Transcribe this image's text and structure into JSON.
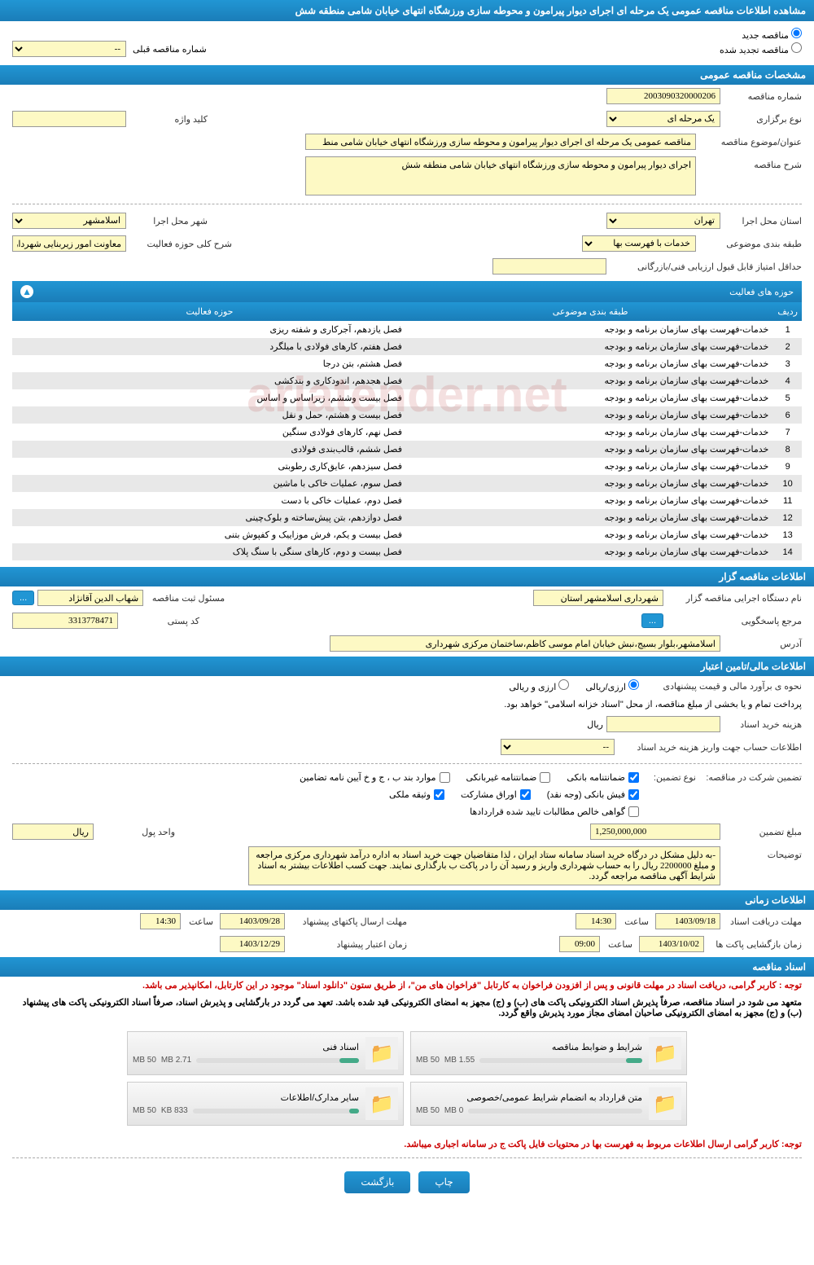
{
  "header": {
    "title": "مشاهده اطلاعات مناقصه عمومی یک مرحله ای اجرای دیوار پیرامون و محوطه سازی ورزشگاه انتهای خیابان شامی منطقه شش"
  },
  "radio": {
    "new_tender": "مناقصه جدید",
    "renewed_tender": "مناقصه تجدید شده",
    "prev_num_label": "شماره مناقصه قبلی",
    "prev_num_value": "--"
  },
  "section1": {
    "title": "مشخصات مناقصه عمومی",
    "tender_num_label": "شماره مناقصه",
    "tender_num": "2003090320000206",
    "type_label": "نوع برگزاری",
    "type_value": "یک مرحله ای",
    "keyword_label": "کلید واژه",
    "keyword": "",
    "subject_label": "عنوان/موضوع مناقصه",
    "subject": "مناقصه عمومی یک مرحله ای اجرای دیوار پیرامون و محوطه سازی ورزشگاه انتهای خیابان شامی منط",
    "desc_label": "شرح مناقصه",
    "desc": "اجرای دیوار پیرامون و محوطه سازی ورزشگاه انتهای خیابان شامی منطقه شش",
    "province_label": "استان محل اجرا",
    "province": "تهران",
    "city_label": "شهر محل اجرا",
    "city": "اسلامشهر",
    "category_label": "طبقه بندی موضوعی",
    "category": "خدمات با فهرست بها",
    "activity_label": "شرح کلی حوزه فعالیت",
    "activity": "معاونت امور زیربنایی شهرداری اسلامشهر",
    "min_score_label": "حداقل امتیاز قابل قبول ارزیابی فنی/بازرگانی",
    "min_score": ""
  },
  "activity_areas": {
    "header": "حوزه های فعالیت",
    "col_row": "ردیف",
    "col_category": "طبقه بندی موضوعی",
    "col_area": "حوزه فعالیت",
    "rows": [
      {
        "n": "1",
        "cat": "خدمات-فهرست بهای سازمان برنامه و بودجه",
        "area": "فصل یازدهم، آجرکاری و شفته ریزی"
      },
      {
        "n": "2",
        "cat": "خدمات-فهرست بهای سازمان برنامه و بودجه",
        "area": "فصل هفتم، کارهای فولادی با میلگرد"
      },
      {
        "n": "3",
        "cat": "خدمات-فهرست بهای سازمان برنامه و بودجه",
        "area": "فصل هشتم، بتن درجا"
      },
      {
        "n": "4",
        "cat": "خدمات-فهرست بهای سازمان برنامه و بودجه",
        "area": "فصل هجدهم، اندودکاری و بندکشی"
      },
      {
        "n": "5",
        "cat": "خدمات-فهرست بهای سازمان برنامه و بودجه",
        "area": "فصل بیست وششم، زیراساس و اساس"
      },
      {
        "n": "6",
        "cat": "خدمات-فهرست بهای سازمان برنامه و بودجه",
        "area": "فصل بیست و هشتم، حمل و نقل"
      },
      {
        "n": "7",
        "cat": "خدمات-فهرست بهای سازمان برنامه و بودجه",
        "area": "فصل نهم، کارهای فولادی سنگین"
      },
      {
        "n": "8",
        "cat": "خدمات-فهرست بهای سازمان برنامه و بودجه",
        "area": "فصل ششم، قالب‌بندی فولادی"
      },
      {
        "n": "9",
        "cat": "خدمات-فهرست بهای سازمان برنامه و بودجه",
        "area": "فصل سیزدهم، عایق‌کاری رطوبتی"
      },
      {
        "n": "10",
        "cat": "خدمات-فهرست بهای سازمان برنامه و بودجه",
        "area": "فصل سوم، عملیات خاکی با ماشین"
      },
      {
        "n": "11",
        "cat": "خدمات-فهرست بهای سازمان برنامه و بودجه",
        "area": "فصل دوم، عملیات خاکی با دست"
      },
      {
        "n": "12",
        "cat": "خدمات-فهرست بهای سازمان برنامه و بودجه",
        "area": "فصل دوازدهم، بتن پیش‌ساخته و بلوک‌چینی"
      },
      {
        "n": "13",
        "cat": "خدمات-فهرست بهای سازمان برنامه و بودجه",
        "area": "فصل بیست و یکم، فرش موزاییک و کفپوش بتنی"
      },
      {
        "n": "14",
        "cat": "خدمات-فهرست بهای سازمان برنامه و بودجه",
        "area": "فصل بیست و دوم، کارهای سنگی با سنگ پلاک"
      }
    ]
  },
  "organizer": {
    "title": "اطلاعات مناقصه گزار",
    "org_label": "نام دستگاه اجرایی مناقصه گزار",
    "org": "شهرداری اسلامشهر استان",
    "responsible_label": "مسئول ثبت مناقصه",
    "responsible": "شهاب الدین آقانژاد",
    "ref_label": "مرجع پاسخگویی",
    "postal_label": "کد پستی",
    "postal": "3313778471",
    "address_label": "آدرس",
    "address": "اسلامشهر،بلوار بسیج،نبش خیابان امام موسی کاظم،ساختمان مرکزی شهرداری"
  },
  "financial": {
    "title": "اطلاعات مالی/تامین اعتبار",
    "estimate_label": "نحوه ی برآورد مالی و قیمت پیشنهادی",
    "arzi_riali": "ارزی/ریالی",
    "arzi_va_riali": "ارزی و ریالی",
    "payment_note": "پرداخت تمام و یا بخشی از مبلغ مناقصه، از محل \"اسناد خزانه اسلامی\" خواهد بود.",
    "doc_cost_label": "هزینه خرید اسناد",
    "rial": "ریال",
    "account_label": "اطلاعات حساب جهت واریز هزینه خرید اسناد",
    "account_value": "--",
    "guarantee_label": "تضمین شرکت در مناقصه:",
    "guarantee_type_label": "نوع تضمین:",
    "bank_guarantee": "ضمانتنامه بانکی",
    "nonbank_guarantee": "ضمانتنامه غیربانکی",
    "clause_items": "موارد بند ب ، ج و خ آیین نامه تضامین",
    "bank_receipt": "فیش بانکی (وجه نقد)",
    "participation_bonds": "اوراق مشارکت",
    "property_pledge": "وثیقه ملکی",
    "net_claims": "گواهی خالص مطالبات تایید شده قراردادها",
    "guarantee_amount_label": "مبلغ تضمین",
    "guarantee_amount": "1,250,000,000",
    "currency_label": "واحد پول",
    "currency": "ریال",
    "notes_label": "توضیحات",
    "notes": "-به دلیل مشکل در درگاه خرید اسناد سامانه ستاد ایران ، لذا متقاضیان جهت خرید اسناد به اداره درآمد شهرداری مرکزی مراجعه و مبلغ 2200000 ریال را به حساب شهرداری واریز و رسید آن را در پاکت ب بارگذاری نمایند. جهت کسب اطلاعات بیشتر به اسناد شرایط آگهی مناقصه مراجعه گردد."
  },
  "timing": {
    "title": "اطلاعات زمانی",
    "receive_label": "مهلت دریافت اسناد",
    "receive_date": "1403/09/18",
    "time_label": "ساعت",
    "receive_time": "14:30",
    "submit_label": "مهلت ارسال پاکتهای پیشنهاد",
    "submit_date": "1403/09/28",
    "submit_time": "14:30",
    "opening_label": "زمان بازگشایی پاکت ها",
    "opening_date": "1403/10/02",
    "opening_time": "09:00",
    "validity_label": "زمان اعتبار پیشنهاد",
    "validity_date": "1403/12/29"
  },
  "documents": {
    "title": "اسناد مناقصه",
    "notice1": "توجه : کاربر گرامی، دریافت اسناد در مهلت قانونی و پس از افزودن فراخوان به کارتابل \"فراخوان های من\"، از طریق ستون \"دانلود اسناد\" موجود در این کارتابل، امکانپذیر می باشد.",
    "notice2": "متعهد می شود در اسناد مناقصه، صرفاً پذیرش اسناد الکترونیکی پاکت های (ب) و (ج) مجهز به امضای الکترونیکی قید شده باشد. تعهد می گردد در بارگشایی و پذیرش اسناد، صرفاً اسناد الکترونیکی پاکت های پیشنهاد (ب) و (ج) مجهز به امضای الکترونیکی صاحبان امضای مجاز مورد پذیرش واقع گردد.",
    "notice3": "توجه: کاربر گرامی ارسال اطلاعات مربوط به فهرست بها در محتویات فایل پاکت ج در سامانه اجباری میباشد.",
    "items": [
      {
        "title": "شرایط و ضوابط مناقصه",
        "size": "1.55 MB",
        "limit": "50 MB",
        "pct": 10
      },
      {
        "title": "اسناد فنی",
        "size": "2.71 MB",
        "limit": "50 MB",
        "pct": 12
      },
      {
        "title": "متن قرارداد به انضمام شرایط عمومی/خصوصی",
        "size": "0 MB",
        "limit": "50 MB",
        "pct": 0
      },
      {
        "title": "سایر مدارک/اطلاعات",
        "size": "833 KB",
        "limit": "50 MB",
        "pct": 6
      }
    ]
  },
  "buttons": {
    "print": "چاپ",
    "back": "بازگشت"
  },
  "watermark": "ariatender.net"
}
